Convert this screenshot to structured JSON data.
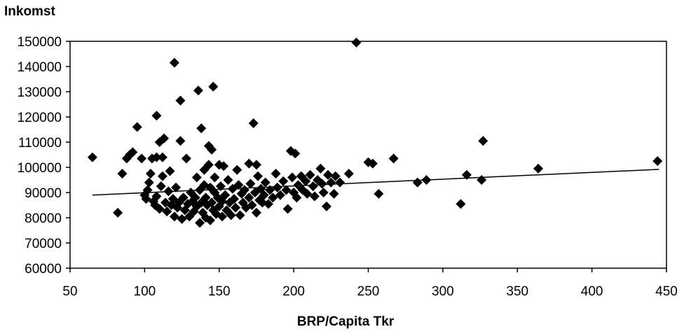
{
  "chart_data": {
    "type": "scatter",
    "ylabel": "Inkomst",
    "xlabel": "BRP/Capita Tkr",
    "xlim": [
      50,
      450
    ],
    "ylim": [
      60000,
      150000
    ],
    "x_ticks": [
      50,
      100,
      150,
      200,
      250,
      300,
      350,
      400,
      450
    ],
    "y_ticks": [
      60000,
      70000,
      80000,
      90000,
      100000,
      110000,
      120000,
      130000,
      140000,
      150000
    ],
    "grid": false,
    "legend": "none",
    "marker": "diamond",
    "marker_color": "#000000",
    "trendline": {
      "type": "linear",
      "x": [
        65,
        445
      ],
      "y": [
        89000,
        99200
      ]
    },
    "points": [
      [
        65,
        104000
      ],
      [
        82,
        82000
      ],
      [
        85,
        97500
      ],
      [
        88,
        103500
      ],
      [
        90,
        105000
      ],
      [
        92,
        106000
      ],
      [
        95,
        116000
      ],
      [
        98,
        103500
      ],
      [
        100,
        89000
      ],
      [
        101,
        87500
      ],
      [
        102,
        91000
      ],
      [
        103,
        94000
      ],
      [
        104,
        97500
      ],
      [
        105,
        103500
      ],
      [
        106,
        86500
      ],
      [
        107,
        85000
      ],
      [
        108,
        88500
      ],
      [
        108,
        104000
      ],
      [
        108,
        120500
      ],
      [
        110,
        110000
      ],
      [
        110,
        83500
      ],
      [
        111,
        92500
      ],
      [
        112,
        96500
      ],
      [
        112,
        104000
      ],
      [
        113,
        111500
      ],
      [
        114,
        86000
      ],
      [
        115,
        82500
      ],
      [
        116,
        90500
      ],
      [
        117,
        98500
      ],
      [
        118,
        85000
      ],
      [
        119,
        87500
      ],
      [
        120,
        80500
      ],
      [
        120,
        141500
      ],
      [
        121,
        92000
      ],
      [
        122,
        84000
      ],
      [
        123,
        86000
      ],
      [
        124,
        126500
      ],
      [
        124,
        110500
      ],
      [
        125,
        79500
      ],
      [
        126,
        88000
      ],
      [
        127,
        83000
      ],
      [
        128,
        103500
      ],
      [
        129,
        85500
      ],
      [
        130,
        80500
      ],
      [
        131,
        90000
      ],
      [
        132,
        86500
      ],
      [
        133,
        82500
      ],
      [
        134,
        88000
      ],
      [
        135,
        84500
      ],
      [
        135,
        96000
      ],
      [
        136,
        130500
      ],
      [
        137,
        78000
      ],
      [
        137,
        91000
      ],
      [
        138,
        115500
      ],
      [
        138,
        86000
      ],
      [
        139,
        82000
      ],
      [
        140,
        93000
      ],
      [
        140,
        99000
      ],
      [
        141,
        88000
      ],
      [
        141,
        80000
      ],
      [
        142,
        85000
      ],
      [
        143,
        108500
      ],
      [
        143,
        101000
      ],
      [
        144,
        92000
      ],
      [
        144,
        79000
      ],
      [
        145,
        107000
      ],
      [
        145,
        86000
      ],
      [
        146,
        132000
      ],
      [
        146,
        83000
      ],
      [
        147,
        90000
      ],
      [
        147,
        96000
      ],
      [
        148,
        81500
      ],
      [
        149,
        88000
      ],
      [
        150,
        101000
      ],
      [
        150,
        84500
      ],
      [
        151,
        92500
      ],
      [
        152,
        86500
      ],
      [
        152,
        80500
      ],
      [
        153,
        100500
      ],
      [
        154,
        89000
      ],
      [
        155,
        83000
      ],
      [
        156,
        95000
      ],
      [
        157,
        86000
      ],
      [
        158,
        81000
      ],
      [
        159,
        91500
      ],
      [
        160,
        87500
      ],
      [
        161,
        84000
      ],
      [
        162,
        99000
      ],
      [
        163,
        93000
      ],
      [
        164,
        81000
      ],
      [
        165,
        89500
      ],
      [
        166,
        86000
      ],
      [
        167,
        91000
      ],
      [
        168,
        84000
      ],
      [
        170,
        101500
      ],
      [
        170,
        88000
      ],
      [
        171,
        93500
      ],
      [
        172,
        85000
      ],
      [
        173,
        117500
      ],
      [
        174,
        90000
      ],
      [
        175,
        101000
      ],
      [
        175,
        82000
      ],
      [
        176,
        96500
      ],
      [
        177,
        87000
      ],
      [
        178,
        91500
      ],
      [
        179,
        86000
      ],
      [
        180,
        89000
      ],
      [
        181,
        94000
      ],
      [
        183,
        85500
      ],
      [
        184,
        91000
      ],
      [
        186,
        88000
      ],
      [
        188,
        97500
      ],
      [
        189,
        92000
      ],
      [
        191,
        89000
      ],
      [
        193,
        94500
      ],
      [
        195,
        91000
      ],
      [
        196,
        83500
      ],
      [
        198,
        106500
      ],
      [
        199,
        96000
      ],
      [
        200,
        90000
      ],
      [
        201,
        105500
      ],
      [
        202,
        88000
      ],
      [
        203,
        93000
      ],
      [
        205,
        96500
      ],
      [
        206,
        91000
      ],
      [
        208,
        94500
      ],
      [
        209,
        89500
      ],
      [
        211,
        97000
      ],
      [
        213,
        92500
      ],
      [
        214,
        88500
      ],
      [
        216,
        95000
      ],
      [
        218,
        99500
      ],
      [
        219,
        93500
      ],
      [
        220,
        90000
      ],
      [
        222,
        84500
      ],
      [
        223,
        97000
      ],
      [
        225,
        94000
      ],
      [
        227,
        89500
      ],
      [
        228,
        96500
      ],
      [
        231,
        94000
      ],
      [
        237,
        97500
      ],
      [
        242,
        149500
      ],
      [
        250,
        102000
      ],
      [
        253,
        101500
      ],
      [
        257,
        89500
      ],
      [
        267,
        103500
      ],
      [
        283,
        94000
      ],
      [
        289,
        95000
      ],
      [
        312,
        85500
      ],
      [
        316,
        97000
      ],
      [
        326,
        95000
      ],
      [
        327,
        110500
      ],
      [
        364,
        99500
      ],
      [
        444,
        102500
      ]
    ]
  }
}
